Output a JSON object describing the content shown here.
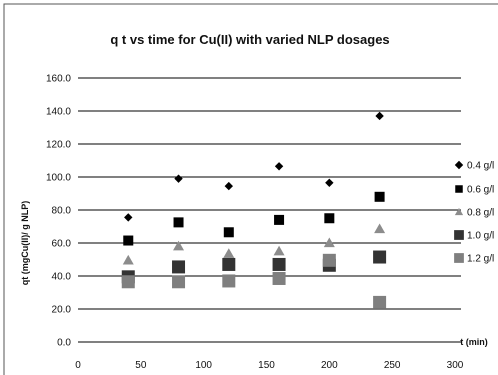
{
  "chart_data": {
    "type": "scatter",
    "title": "q t vs time for Cu(II) with varied NLP dosages",
    "xlabel": "t (min)",
    "ylabel": "qt (mgCu(II)/ g NLP)",
    "xlim": [
      0,
      300
    ],
    "ylim": [
      0,
      160
    ],
    "x_ticks": [
      0,
      50,
      100,
      150,
      200,
      250,
      300
    ],
    "x_tick_labels": [
      "0",
      "50",
      "100",
      "150",
      "200",
      "250",
      "300"
    ],
    "y_ticks": [
      0,
      20,
      40,
      60,
      80,
      100,
      120,
      140,
      160
    ],
    "y_tick_labels": [
      "0.0",
      "20.0",
      "40.0",
      "60.0",
      "80.0",
      "100.0",
      "120.0",
      "140.0",
      "160.0"
    ],
    "grid": "horizontal",
    "legend_position": "right",
    "series": [
      {
        "name": "0.4 g/l",
        "marker": "diamond",
        "color": "#000000",
        "x": [
          40,
          80,
          120,
          160,
          200,
          240
        ],
        "y": [
          75.5,
          99.0,
          94.5,
          106.5,
          96.5,
          137.0
        ]
      },
      {
        "name": "0.6 g/l",
        "marker": "square",
        "color": "#000000",
        "x": [
          40,
          80,
          120,
          160,
          200,
          240
        ],
        "y": [
          61.5,
          72.5,
          66.5,
          74.0,
          75.0,
          88.0
        ]
      },
      {
        "name": "0.8 g/l",
        "marker": "triangle",
        "color": "#8c8c8c",
        "x": [
          40,
          80,
          120,
          160,
          200,
          240
        ],
        "y": [
          49.5,
          58.0,
          53.5,
          55.0,
          60.0,
          68.5
        ]
      },
      {
        "name": "1.0 g/l",
        "marker": "square-large",
        "color": "#333333",
        "x": [
          40,
          80,
          120,
          160,
          200,
          240
        ],
        "y": [
          39.5,
          45.5,
          47.0,
          47.0,
          46.5,
          51.5
        ]
      },
      {
        "name": "1.2 g/l",
        "marker": "square-large",
        "color": "#7f7f7f",
        "x": [
          40,
          80,
          120,
          160,
          200,
          240
        ],
        "y": [
          36.5,
          36.5,
          37.0,
          38.5,
          49.5,
          24.0
        ]
      }
    ]
  }
}
